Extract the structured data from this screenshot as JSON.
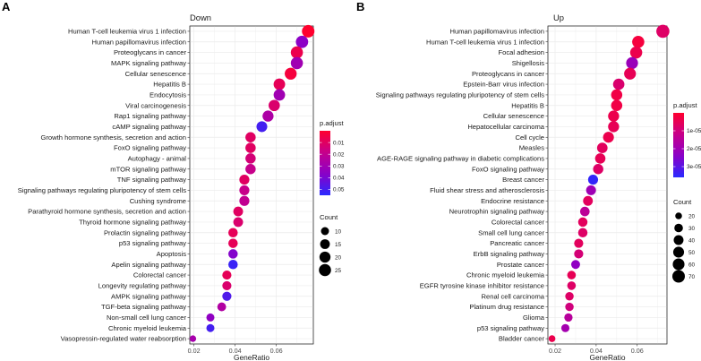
{
  "chart_data": [
    {
      "panel_letter": "A",
      "type": "scatter",
      "title": "Down",
      "xlabel": "GeneRatio",
      "ylabel": "",
      "xlim": [
        0.018,
        0.078
      ],
      "xticks": [
        0.02,
        0.04,
        0.06
      ],
      "xtick_labels": [
        "0.02",
        "0.04",
        "0.06"
      ],
      "padjust_range": [
        0.0,
        0.055
      ],
      "padjust_legend_ticks": [
        0.01,
        0.02,
        0.03,
        0.04,
        0.05
      ],
      "padjust_legend_labels": [
        "0.01",
        "0.02",
        "0.03",
        "0.04",
        "0.05"
      ],
      "count_range": [
        5,
        27
      ],
      "count_legend_values": [
        10,
        15,
        20,
        25
      ],
      "count_legend_labels": [
        "10",
        "15",
        "20",
        "25"
      ],
      "legend_color_title": "p.adjust",
      "legend_size_title": "Count",
      "terms": [
        {
          "term": "Human T-cell leukemia virus 1 infection",
          "gene_ratio": 0.0755,
          "count": 27,
          "p_adjust": 0.0
        },
        {
          "term": "Human papillomavirus infection",
          "gene_ratio": 0.0725,
          "count": 26,
          "p_adjust": 0.036
        },
        {
          "term": "Proteoglycans in cancer",
          "gene_ratio": 0.07,
          "count": 25,
          "p_adjust": 0.006
        },
        {
          "term": "MAPK signaling pathway",
          "gene_ratio": 0.07,
          "count": 25,
          "p_adjust": 0.03
        },
        {
          "term": "Cellular senescence",
          "gene_ratio": 0.067,
          "count": 24,
          "p_adjust": 0.003
        },
        {
          "term": "Hepatitis B",
          "gene_ratio": 0.0615,
          "count": 22,
          "p_adjust": 0.008
        },
        {
          "term": "Endocytosis",
          "gene_ratio": 0.0615,
          "count": 22,
          "p_adjust": 0.03
        },
        {
          "term": "Viral carcinogenesis",
          "gene_ratio": 0.059,
          "count": 21,
          "p_adjust": 0.012
        },
        {
          "term": "Rap1 signaling pathway",
          "gene_ratio": 0.056,
          "count": 20,
          "p_adjust": 0.026
        },
        {
          "term": "cAMP signaling pathway",
          "gene_ratio": 0.053,
          "count": 19,
          "p_adjust": 0.05
        },
        {
          "term": "Growth hormone synthesis, secretion and action",
          "gene_ratio": 0.0475,
          "count": 17,
          "p_adjust": 0.01
        },
        {
          "term": "FoxO signaling pathway",
          "gene_ratio": 0.0475,
          "count": 17,
          "p_adjust": 0.01
        },
        {
          "term": "Autophagy - animal",
          "gene_ratio": 0.0475,
          "count": 17,
          "p_adjust": 0.014
        },
        {
          "term": "mTOR signaling pathway",
          "gene_ratio": 0.0475,
          "count": 17,
          "p_adjust": 0.018
        },
        {
          "term": "TNF signaling pathway",
          "gene_ratio": 0.0445,
          "count": 16,
          "p_adjust": 0.01
        },
        {
          "term": "Signaling pathways regulating pluripotency of stem cells",
          "gene_ratio": 0.0445,
          "count": 16,
          "p_adjust": 0.018
        },
        {
          "term": "Cushing syndrome",
          "gene_ratio": 0.0445,
          "count": 16,
          "p_adjust": 0.02
        },
        {
          "term": "Parathyroid hormone synthesis, secretion and action",
          "gene_ratio": 0.0415,
          "count": 15,
          "p_adjust": 0.01
        },
        {
          "term": "Thyroid hormone signaling pathway",
          "gene_ratio": 0.0415,
          "count": 15,
          "p_adjust": 0.012
        },
        {
          "term": "Prolactin signaling pathway",
          "gene_ratio": 0.039,
          "count": 14,
          "p_adjust": 0.008
        },
        {
          "term": "p53 signaling pathway",
          "gene_ratio": 0.039,
          "count": 14,
          "p_adjust": 0.008
        },
        {
          "term": "Apoptosis",
          "gene_ratio": 0.039,
          "count": 14,
          "p_adjust": 0.038
        },
        {
          "term": "Apelin signaling pathway",
          "gene_ratio": 0.039,
          "count": 14,
          "p_adjust": 0.052
        },
        {
          "term": "Colorectal cancer",
          "gene_ratio": 0.036,
          "count": 13,
          "p_adjust": 0.008
        },
        {
          "term": "Longevity regulating pathway",
          "gene_ratio": 0.036,
          "count": 13,
          "p_adjust": 0.012
        },
        {
          "term": "AMPK signaling pathway",
          "gene_ratio": 0.036,
          "count": 13,
          "p_adjust": 0.048
        },
        {
          "term": "TGF-beta signaling pathway",
          "gene_ratio": 0.0335,
          "count": 12,
          "p_adjust": 0.025
        },
        {
          "term": "Non-small cell lung cancer",
          "gene_ratio": 0.028,
          "count": 10,
          "p_adjust": 0.035
        },
        {
          "term": "Chronic myeloid leukemia",
          "gene_ratio": 0.028,
          "count": 10,
          "p_adjust": 0.05
        },
        {
          "term": "Vasopressin-regulated water reabsorption",
          "gene_ratio": 0.0195,
          "count": 7,
          "p_adjust": 0.028
        }
      ]
    },
    {
      "panel_letter": "B",
      "type": "scatter",
      "title": "Up",
      "xlabel": "GeneRatio",
      "ylabel": "",
      "xlim": [
        0.0165,
        0.0745
      ],
      "xticks": [
        0.02,
        0.04,
        0.06
      ],
      "xtick_labels": [
        "0.02",
        "0.04",
        "0.06"
      ],
      "padjust_range": [
        0.0,
        3.6e-05
      ],
      "padjust_legend_ticks": [
        1e-05,
        2e-05,
        3e-05
      ],
      "padjust_legend_labels": [
        "1e-05",
        "2e-05",
        "3e-05"
      ],
      "count_range": [
        15,
        80
      ],
      "count_legend_values": [
        20,
        30,
        40,
        50,
        60,
        70
      ],
      "count_legend_labels": [
        "20",
        "30",
        "40",
        "50",
        "60",
        "70"
      ],
      "legend_color_title": "p.adjust",
      "legend_size_title": "Count",
      "terms": [
        {
          "term": "Human papillomavirus infection",
          "gene_ratio": 0.0725,
          "count": 78,
          "p_adjust": 7e-06
        },
        {
          "term": "Human T-cell leukemia virus 1 infection",
          "gene_ratio": 0.0605,
          "count": 65,
          "p_adjust": 2e-06
        },
        {
          "term": "Focal adhesion",
          "gene_ratio": 0.0595,
          "count": 64,
          "p_adjust": 4e-06
        },
        {
          "term": "Shigellosis",
          "gene_ratio": 0.0575,
          "count": 62,
          "p_adjust": 2.1e-05
        },
        {
          "term": "Proteoglycans in cancer",
          "gene_ratio": 0.0565,
          "count": 61,
          "p_adjust": 5e-06
        },
        {
          "term": "Epstein-Barr virus infection",
          "gene_ratio": 0.051,
          "count": 55,
          "p_adjust": 8e-06
        },
        {
          "term": "Signaling pathways regulating pluripotency of stem cells",
          "gene_ratio": 0.05,
          "count": 54,
          "p_adjust": 3e-06
        },
        {
          "term": "Hepatitis B",
          "gene_ratio": 0.05,
          "count": 54,
          "p_adjust": 3e-06
        },
        {
          "term": "Cellular senescence",
          "gene_ratio": 0.0485,
          "count": 52,
          "p_adjust": 4e-06
        },
        {
          "term": "Hepatocellular carcinoma",
          "gene_ratio": 0.0485,
          "count": 52,
          "p_adjust": 5e-06
        },
        {
          "term": "Cell cycle",
          "gene_ratio": 0.046,
          "count": 50,
          "p_adjust": 4e-06
        },
        {
          "term": "Measles",
          "gene_ratio": 0.043,
          "count": 46,
          "p_adjust": 6e-06
        },
        {
          "term": "AGE-RAGE signaling pathway in diabetic complications",
          "gene_ratio": 0.042,
          "count": 45,
          "p_adjust": 5e-06
        },
        {
          "term": "FoxO signaling pathway",
          "gene_ratio": 0.041,
          "count": 44,
          "p_adjust": 7e-06
        },
        {
          "term": "Breast cancer",
          "gene_ratio": 0.0385,
          "count": 41,
          "p_adjust": 3.5e-05
        },
        {
          "term": "Fluid shear stress and atherosclerosis",
          "gene_ratio": 0.0375,
          "count": 40,
          "p_adjust": 2e-05
        },
        {
          "term": "Endocrine resistance",
          "gene_ratio": 0.036,
          "count": 39,
          "p_adjust": 6e-06
        },
        {
          "term": "Neurotrophin signaling pathway",
          "gene_ratio": 0.0345,
          "count": 37,
          "p_adjust": 1.4e-05
        },
        {
          "term": "Colorectal cancer",
          "gene_ratio": 0.0335,
          "count": 36,
          "p_adjust": 6e-06
        },
        {
          "term": "Small cell lung cancer",
          "gene_ratio": 0.0335,
          "count": 36,
          "p_adjust": 7e-06
        },
        {
          "term": "Pancreatic cancer",
          "gene_ratio": 0.0315,
          "count": 34,
          "p_adjust": 6e-06
        },
        {
          "term": "ErbB signaling pathway",
          "gene_ratio": 0.0315,
          "count": 34,
          "p_adjust": 9e-06
        },
        {
          "term": "Prostate cancer",
          "gene_ratio": 0.03,
          "count": 32,
          "p_adjust": 2.3e-05
        },
        {
          "term": "Chronic myeloid leukemia",
          "gene_ratio": 0.028,
          "count": 30,
          "p_adjust": 5e-06
        },
        {
          "term": "EGFR tyrosine kinase inhibitor resistance",
          "gene_ratio": 0.028,
          "count": 30,
          "p_adjust": 7e-06
        },
        {
          "term": "Renal cell carcinoma",
          "gene_ratio": 0.027,
          "count": 29,
          "p_adjust": 7e-06
        },
        {
          "term": "Platinum drug resistance",
          "gene_ratio": 0.027,
          "count": 29,
          "p_adjust": 1e-05
        },
        {
          "term": "Glioma",
          "gene_ratio": 0.0265,
          "count": 28,
          "p_adjust": 1.5e-05
        },
        {
          "term": "p53 signaling pathway",
          "gene_ratio": 0.025,
          "count": 27,
          "p_adjust": 1.9e-05
        },
        {
          "term": "Bladder cancer",
          "gene_ratio": 0.0185,
          "count": 20,
          "p_adjust": 4e-06
        }
      ]
    }
  ]
}
